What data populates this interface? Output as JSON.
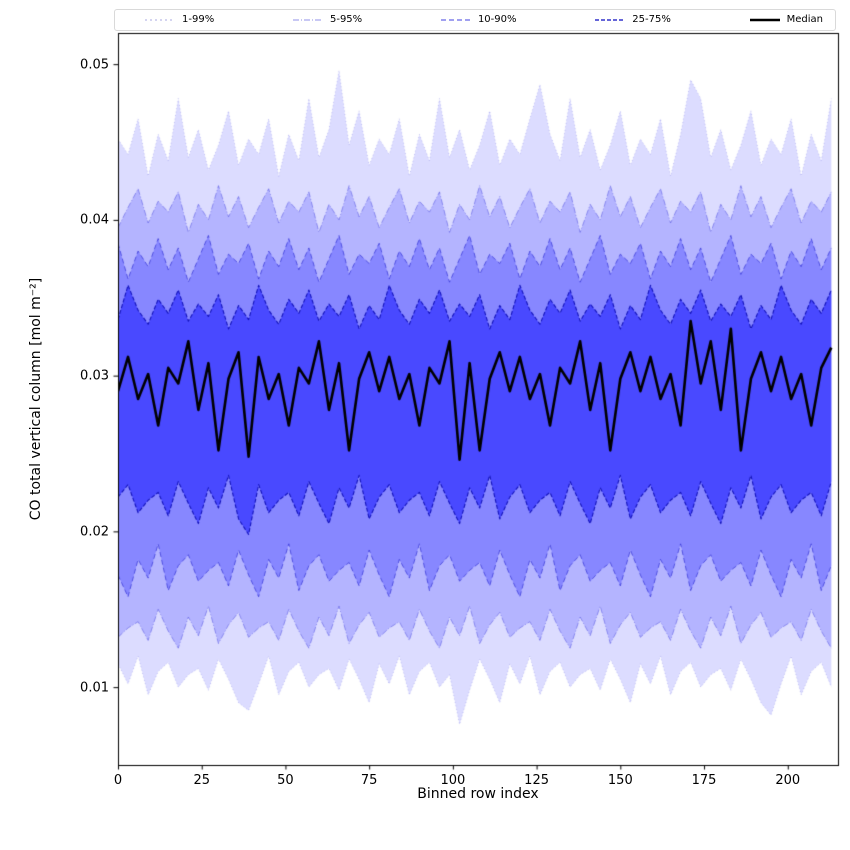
{
  "chart_data": {
    "type": "area",
    "title": "",
    "xlabel": "Binned row index",
    "ylabel": "CO total vertical column [mol m⁻²]",
    "xlim": [
      0,
      215
    ],
    "ylim": [
      0.005,
      0.052
    ],
    "xticks": [
      0,
      25,
      50,
      75,
      100,
      125,
      150,
      175,
      200
    ],
    "yticks": [
      0.01,
      0.02,
      0.03,
      0.04,
      0.05
    ],
    "grid": false,
    "legend": {
      "position": "top",
      "entries": [
        {
          "label": "1-99%",
          "color": "#a8a8e0",
          "dash": "2,3",
          "width": 1
        },
        {
          "label": "5-95%",
          "color": "#9090e8",
          "dash": "6,2,1,2",
          "width": 1
        },
        {
          "label": "10-90%",
          "color": "#6868e8",
          "dash": "5,3",
          "width": 1.2
        },
        {
          "label": "25-75%",
          "color": "#3232cc",
          "dash": "4,2",
          "width": 1.4
        },
        {
          "label": "Median",
          "color": "#000000",
          "dash": "",
          "width": 2.6
        }
      ]
    },
    "x": [
      0,
      3,
      6,
      9,
      12,
      15,
      18,
      21,
      24,
      27,
      30,
      33,
      36,
      39,
      42,
      45,
      48,
      51,
      54,
      57,
      60,
      63,
      66,
      69,
      72,
      75,
      78,
      81,
      84,
      87,
      90,
      93,
      96,
      99,
      102,
      105,
      108,
      111,
      114,
      117,
      120,
      123,
      126,
      129,
      132,
      135,
      138,
      141,
      144,
      147,
      150,
      153,
      156,
      159,
      162,
      165,
      168,
      171,
      174,
      177,
      180,
      183,
      186,
      189,
      192,
      195,
      198,
      201,
      204,
      207,
      210,
      213
    ],
    "bands": [
      {
        "label": "1-99%",
        "color": "#2828ff",
        "fill_alpha": 0.16,
        "edge_color": "#4646dc",
        "edge_alpha": 0.35,
        "edge_width": 0.8,
        "dash": [
          1,
          2.5
        ],
        "lower": [
          0.0115,
          0.0102,
          0.012,
          0.0095,
          0.011,
          0.0116,
          0.01,
          0.0108,
          0.0112,
          0.0098,
          0.0118,
          0.0105,
          0.009,
          0.0085,
          0.0102,
          0.012,
          0.0095,
          0.011,
          0.0116,
          0.01,
          0.0108,
          0.0112,
          0.0098,
          0.0118,
          0.0105,
          0.009,
          0.0115,
          0.0102,
          0.012,
          0.0095,
          0.011,
          0.0116,
          0.01,
          0.0108,
          0.0076,
          0.0098,
          0.0118,
          0.0105,
          0.009,
          0.0115,
          0.0102,
          0.012,
          0.0095,
          0.011,
          0.0116,
          0.01,
          0.0108,
          0.0112,
          0.0098,
          0.0118,
          0.0105,
          0.009,
          0.0115,
          0.0102,
          0.012,
          0.0095,
          0.011,
          0.0116,
          0.01,
          0.0108,
          0.0112,
          0.0098,
          0.0118,
          0.0105,
          0.009,
          0.0082,
          0.0102,
          0.012,
          0.0095,
          0.011,
          0.0116,
          0.01
        ],
        "upper": [
          0.0452,
          0.0442,
          0.0465,
          0.0428,
          0.0455,
          0.0438,
          0.0478,
          0.044,
          0.0458,
          0.0432,
          0.0448,
          0.047,
          0.0435,
          0.0452,
          0.0442,
          0.0465,
          0.0428,
          0.0455,
          0.0438,
          0.0478,
          0.044,
          0.0458,
          0.0496,
          0.0448,
          0.047,
          0.0435,
          0.0452,
          0.0442,
          0.0465,
          0.0428,
          0.0455,
          0.0438,
          0.0478,
          0.044,
          0.0458,
          0.0432,
          0.0448,
          0.047,
          0.0435,
          0.0452,
          0.0442,
          0.0465,
          0.0487,
          0.0455,
          0.0438,
          0.0478,
          0.044,
          0.0458,
          0.0432,
          0.0448,
          0.047,
          0.0435,
          0.0452,
          0.0442,
          0.0465,
          0.0428,
          0.0455,
          0.049,
          0.0478,
          0.044,
          0.0458,
          0.0432,
          0.0448,
          0.047,
          0.0435,
          0.0452,
          0.0442,
          0.0465,
          0.0428,
          0.0455,
          0.0438,
          0.0478
        ]
      },
      {
        "label": "5-95%",
        "color": "#2828ff",
        "fill_alpha": 0.22,
        "edge_color": "#3c3cdc",
        "edge_alpha": 0.5,
        "edge_width": 0.9,
        "dash": [
          6,
          2,
          1,
          2
        ],
        "lower": [
          0.0132,
          0.0138,
          0.0142,
          0.013,
          0.015,
          0.0136,
          0.0125,
          0.0145,
          0.0133,
          0.0152,
          0.0128,
          0.014,
          0.0148,
          0.0132,
          0.0138,
          0.0142,
          0.013,
          0.015,
          0.0136,
          0.0125,
          0.0145,
          0.0133,
          0.0152,
          0.0128,
          0.014,
          0.0148,
          0.0132,
          0.0138,
          0.0142,
          0.013,
          0.015,
          0.0136,
          0.0125,
          0.0145,
          0.0133,
          0.0152,
          0.0128,
          0.014,
          0.0148,
          0.0132,
          0.0138,
          0.0142,
          0.013,
          0.015,
          0.0136,
          0.0125,
          0.0145,
          0.0133,
          0.0152,
          0.0128,
          0.014,
          0.0148,
          0.0132,
          0.0138,
          0.0142,
          0.013,
          0.015,
          0.0136,
          0.0125,
          0.0145,
          0.0133,
          0.0152,
          0.0128,
          0.014,
          0.0148,
          0.0132,
          0.0138,
          0.0142,
          0.013,
          0.015,
          0.0136,
          0.0125
        ],
        "upper": [
          0.0395,
          0.0408,
          0.042,
          0.0398,
          0.0412,
          0.0405,
          0.0418,
          0.0392,
          0.041,
          0.04,
          0.0422,
          0.0402,
          0.0415,
          0.0395,
          0.0408,
          0.042,
          0.0398,
          0.0412,
          0.0405,
          0.0418,
          0.0392,
          0.041,
          0.04,
          0.0422,
          0.0402,
          0.0415,
          0.0395,
          0.0408,
          0.042,
          0.0398,
          0.0412,
          0.0405,
          0.0418,
          0.0392,
          0.041,
          0.04,
          0.0422,
          0.0402,
          0.0415,
          0.0395,
          0.0408,
          0.042,
          0.0398,
          0.0412,
          0.0405,
          0.0418,
          0.0392,
          0.041,
          0.04,
          0.0422,
          0.0402,
          0.0415,
          0.0395,
          0.0408,
          0.042,
          0.0398,
          0.0412,
          0.0405,
          0.0418,
          0.0392,
          0.041,
          0.04,
          0.0422,
          0.0402,
          0.0415,
          0.0395,
          0.0408,
          0.042,
          0.0398,
          0.0412,
          0.0405,
          0.0418
        ]
      },
      {
        "label": "10-90%",
        "color": "#2828ff",
        "fill_alpha": 0.32,
        "edge_color": "#2828d2",
        "edge_alpha": 0.65,
        "edge_width": 1.0,
        "dash": [
          5,
          3
        ],
        "lower": [
          0.0172,
          0.0158,
          0.0182,
          0.017,
          0.0192,
          0.0162,
          0.0178,
          0.0185,
          0.0168,
          0.0175,
          0.018,
          0.0165,
          0.0188,
          0.0172,
          0.0158,
          0.0182,
          0.017,
          0.0192,
          0.0162,
          0.0178,
          0.0185,
          0.0168,
          0.0175,
          0.018,
          0.0165,
          0.0188,
          0.0172,
          0.0158,
          0.0182,
          0.017,
          0.0192,
          0.0162,
          0.0178,
          0.0185,
          0.0168,
          0.0175,
          0.018,
          0.0165,
          0.0188,
          0.0172,
          0.0158,
          0.0182,
          0.017,
          0.0192,
          0.0162,
          0.0178,
          0.0185,
          0.0168,
          0.0175,
          0.018,
          0.0165,
          0.0188,
          0.0172,
          0.0158,
          0.0182,
          0.017,
          0.0192,
          0.0162,
          0.0178,
          0.0185,
          0.0168,
          0.0175,
          0.018,
          0.0165,
          0.0188,
          0.0172,
          0.0158,
          0.0182,
          0.017,
          0.0192,
          0.0162,
          0.0178
        ],
        "upper": [
          0.0385,
          0.0362,
          0.038,
          0.037,
          0.0388,
          0.0368,
          0.0382,
          0.036,
          0.0375,
          0.039,
          0.0365,
          0.0378,
          0.0372,
          0.0385,
          0.0362,
          0.038,
          0.037,
          0.0388,
          0.0368,
          0.0382,
          0.036,
          0.0375,
          0.039,
          0.0365,
          0.0378,
          0.0372,
          0.0385,
          0.0362,
          0.038,
          0.037,
          0.0388,
          0.0368,
          0.0382,
          0.036,
          0.0375,
          0.039,
          0.0365,
          0.0378,
          0.0372,
          0.0385,
          0.0362,
          0.038,
          0.037,
          0.0388,
          0.0368,
          0.0382,
          0.036,
          0.0375,
          0.039,
          0.0365,
          0.0378,
          0.0372,
          0.0385,
          0.0362,
          0.038,
          0.037,
          0.0388,
          0.0368,
          0.0382,
          0.036,
          0.0375,
          0.039,
          0.0365,
          0.0378,
          0.0372,
          0.0385,
          0.0362,
          0.038,
          0.037,
          0.0388,
          0.0368,
          0.0382
        ]
      },
      {
        "label": "25-75%",
        "color": "#2828ff",
        "fill_alpha": 0.65,
        "edge_color": "#0a0ab4",
        "edge_alpha": 0.9,
        "edge_width": 1.1,
        "dash": [
          4,
          2
        ],
        "lower": [
          0.0222,
          0.023,
          0.0212,
          0.022,
          0.0225,
          0.021,
          0.0232,
          0.0218,
          0.0205,
          0.0228,
          0.0215,
          0.0236,
          0.0208,
          0.0198,
          0.023,
          0.0212,
          0.022,
          0.0225,
          0.021,
          0.0232,
          0.0218,
          0.0205,
          0.0228,
          0.0215,
          0.0236,
          0.0208,
          0.0222,
          0.023,
          0.0212,
          0.022,
          0.0225,
          0.021,
          0.0232,
          0.0218,
          0.0205,
          0.0228,
          0.0215,
          0.0236,
          0.0208,
          0.0222,
          0.023,
          0.0212,
          0.022,
          0.0225,
          0.021,
          0.0232,
          0.0218,
          0.0205,
          0.0228,
          0.0215,
          0.0236,
          0.0208,
          0.0222,
          0.023,
          0.0212,
          0.022,
          0.0225,
          0.021,
          0.0232,
          0.0218,
          0.0205,
          0.0228,
          0.0215,
          0.0236,
          0.0208,
          0.0222,
          0.023,
          0.0212,
          0.022,
          0.0225,
          0.021,
          0.0232
        ],
        "upper": [
          0.0336,
          0.0358,
          0.0342,
          0.0333,
          0.0349,
          0.034,
          0.0355,
          0.0335,
          0.0346,
          0.0338,
          0.0352,
          0.033,
          0.0345,
          0.0336,
          0.0358,
          0.0342,
          0.0333,
          0.0349,
          0.034,
          0.0355,
          0.0335,
          0.0346,
          0.0338,
          0.0352,
          0.033,
          0.0345,
          0.0336,
          0.0358,
          0.0342,
          0.0333,
          0.0349,
          0.034,
          0.0355,
          0.0335,
          0.0346,
          0.0338,
          0.0352,
          0.033,
          0.0345,
          0.0336,
          0.0358,
          0.0342,
          0.0333,
          0.0349,
          0.034,
          0.0355,
          0.0335,
          0.0346,
          0.0338,
          0.0352,
          0.033,
          0.0345,
          0.0336,
          0.0358,
          0.0342,
          0.0333,
          0.0349,
          0.034,
          0.0355,
          0.0335,
          0.0346,
          0.0338,
          0.0352,
          0.033,
          0.0345,
          0.0336,
          0.0358,
          0.0342,
          0.0333,
          0.0349,
          0.034,
          0.0355
        ]
      }
    ],
    "median": {
      "label": "Median",
      "color": "#000000",
      "width": 2.6,
      "values": [
        0.029,
        0.0312,
        0.0285,
        0.0301,
        0.0268,
        0.0305,
        0.0295,
        0.0322,
        0.0278,
        0.0308,
        0.0252,
        0.0298,
        0.0315,
        0.0248,
        0.0312,
        0.0285,
        0.0301,
        0.0268,
        0.0305,
        0.0295,
        0.0322,
        0.0278,
        0.0308,
        0.0252,
        0.0298,
        0.0315,
        0.029,
        0.0312,
        0.0285,
        0.0301,
        0.0268,
        0.0305,
        0.0295,
        0.0322,
        0.0246,
        0.0308,
        0.0252,
        0.0298,
        0.0315,
        0.029,
        0.0312,
        0.0285,
        0.0301,
        0.0268,
        0.0305,
        0.0295,
        0.0322,
        0.0278,
        0.0308,
        0.0252,
        0.0298,
        0.0315,
        0.029,
        0.0312,
        0.0285,
        0.0301,
        0.0268,
        0.0335,
        0.0295,
        0.0322,
        0.0278,
        0.033,
        0.0252,
        0.0298,
        0.0315,
        0.029,
        0.0312,
        0.0285,
        0.0301,
        0.0268,
        0.0305,
        0.0318
      ]
    }
  }
}
